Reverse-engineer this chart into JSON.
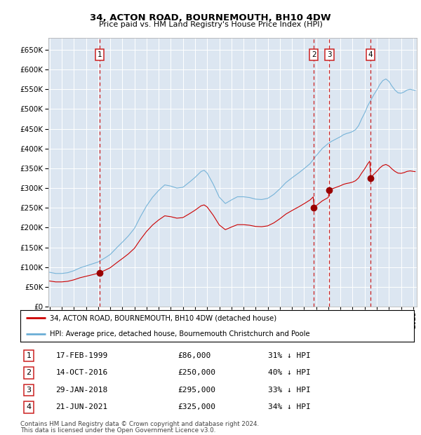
{
  "title1": "34, ACTON ROAD, BOURNEMOUTH, BH10 4DW",
  "title2": "Price paid vs. HM Land Registry's House Price Index (HPI)",
  "ylim": [
    0,
    680000
  ],
  "yticks": [
    0,
    50000,
    100000,
    150000,
    200000,
    250000,
    300000,
    350000,
    400000,
    450000,
    500000,
    550000,
    600000,
    650000
  ],
  "xlim_start": 1994.9,
  "xlim_end": 2025.3,
  "background_color": "#dce6f1",
  "sales": [
    {
      "num": 1,
      "date": "17-FEB-1999",
      "date_x": 1999.125,
      "price": 86000,
      "pct": "31% ↓ HPI"
    },
    {
      "num": 2,
      "date": "14-OCT-2016",
      "date_x": 2016.792,
      "price": 250000,
      "pct": "40% ↓ HPI"
    },
    {
      "num": 3,
      "date": "29-JAN-2018",
      "date_x": 2018.083,
      "price": 295000,
      "pct": "33% ↓ HPI"
    },
    {
      "num": 4,
      "date": "21-JUN-2021",
      "date_x": 2021.472,
      "price": 325000,
      "pct": "34% ↓ HPI"
    }
  ],
  "hpi_color": "#6baed6",
  "sale_line_color": "#cc0000",
  "sale_dot_color": "#990000",
  "legend_label_property": "34, ACTON ROAD, BOURNEMOUTH, BH10 4DW (detached house)",
  "legend_label_hpi": "HPI: Average price, detached house, Bournemouth Christchurch and Poole",
  "footer1": "Contains HM Land Registry data © Crown copyright and database right 2024.",
  "footer2": "This data is licensed under the Open Government Licence v3.0."
}
